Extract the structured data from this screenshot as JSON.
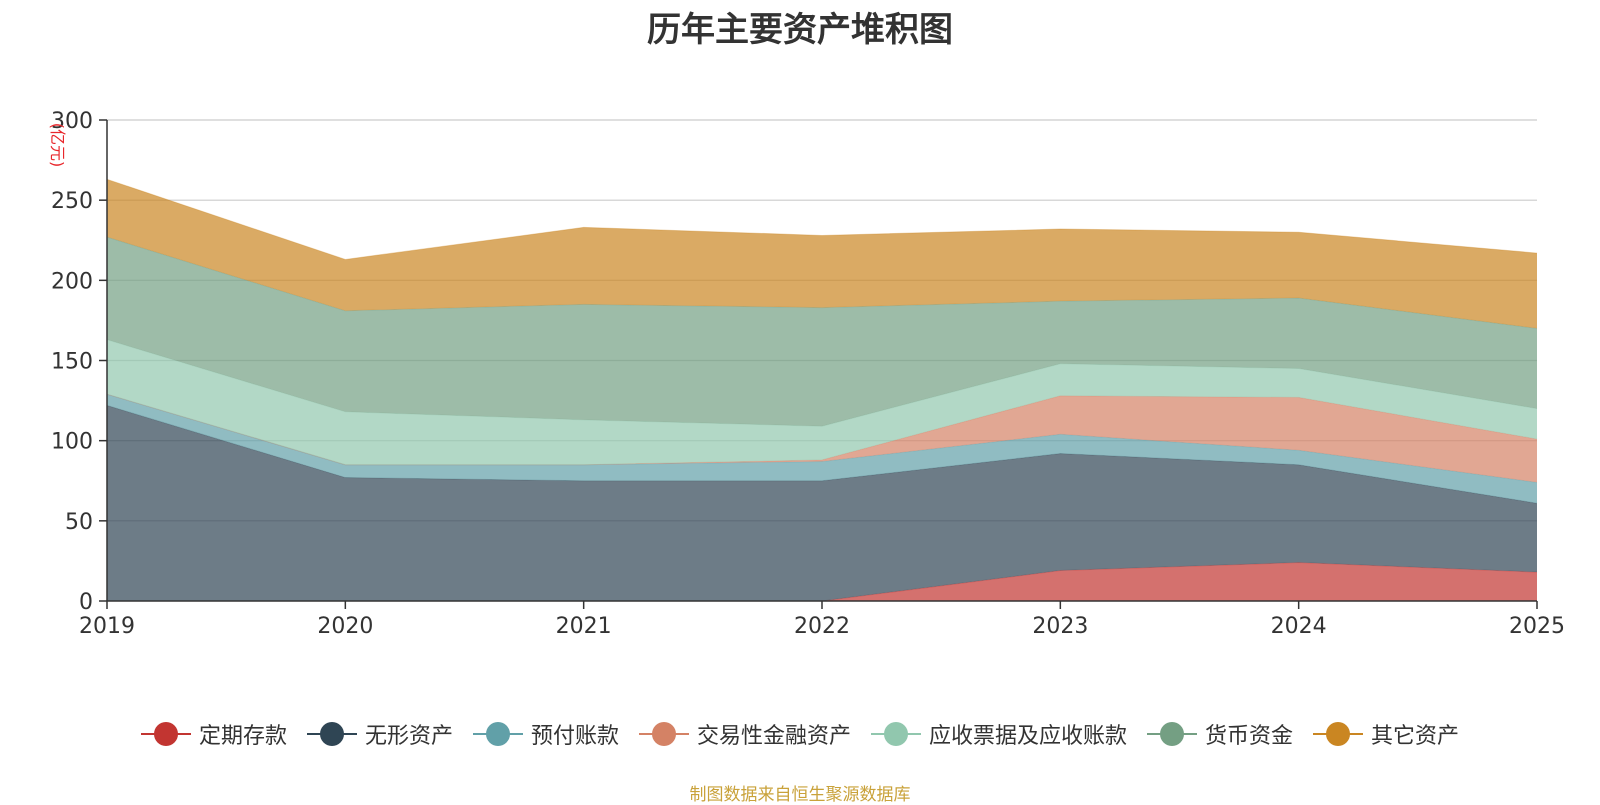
{
  "chart_data": {
    "type": "area",
    "title": "历年主要资产堆积图",
    "ylabel": "(亿元)",
    "xlabel": "",
    "ylim": [
      0,
      300
    ],
    "yticks": [
      0,
      50,
      100,
      150,
      200,
      250,
      300
    ],
    "categories": [
      "2019",
      "2020",
      "2021",
      "2022",
      "2023",
      "2024",
      "2025"
    ],
    "stacked": true,
    "grid": true,
    "legend_position": "bottom",
    "series": [
      {
        "name": "定期存款",
        "color": "#c23531",
        "values": [
          0,
          0,
          0,
          0,
          19,
          24,
          18
        ]
      },
      {
        "name": "无形资产",
        "color": "#2f4554",
        "values": [
          122,
          77,
          75,
          75,
          73,
          61,
          43
        ]
      },
      {
        "name": "预付账款",
        "color": "#61a0a8",
        "values": [
          7,
          8,
          10,
          12,
          12,
          9,
          13
        ]
      },
      {
        "name": "交易性金融资产",
        "color": "#d48265",
        "values": [
          0,
          0,
          0,
          1,
          24,
          33,
          27
        ]
      },
      {
        "name": "应收票据及应收账款",
        "color": "#91c7ae",
        "values": [
          34,
          33,
          28,
          21,
          20,
          18,
          19
        ]
      },
      {
        "name": "货币资金",
        "color": "#749f83",
        "values": [
          64,
          63,
          72,
          74,
          39,
          44,
          50
        ]
      },
      {
        "name": "其它资产",
        "color": "#ca8622",
        "values": [
          36,
          32,
          48,
          45,
          45,
          41,
          47
        ]
      }
    ]
  },
  "source_note": "制图数据来自恒生聚源数据库"
}
